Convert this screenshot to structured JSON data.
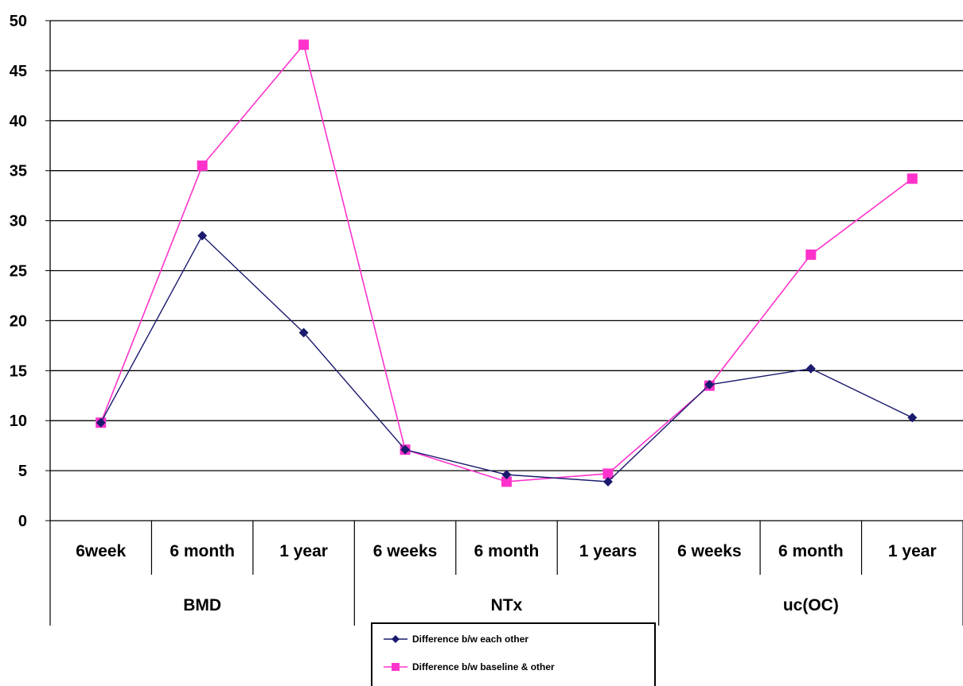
{
  "chart_data": {
    "type": "line",
    "categories": [
      "6week",
      "6 month",
      "1 year",
      "6 weeks",
      "6 month",
      "1 years",
      "6 weeks",
      "6 month",
      "1 year"
    ],
    "groups": [
      {
        "label": "BMD",
        "count": 3
      },
      {
        "label": "NTx",
        "count": 3
      },
      {
        "label": "uc(OC)",
        "count": 3
      }
    ],
    "series": [
      {
        "name": "Difference b/w each other",
        "color": "#1a1a6e",
        "marker": "diamond",
        "values": [
          9.8,
          28.5,
          18.8,
          7.1,
          4.6,
          3.9,
          13.6,
          15.2,
          10.3
        ]
      },
      {
        "name": "Difference b/w baseline & other",
        "color": "#ff33cc",
        "marker": "square",
        "values": [
          9.8,
          35.5,
          47.6,
          7.1,
          3.9,
          4.7,
          13.5,
          26.6,
          34.2
        ]
      }
    ],
    "ylim": [
      0,
      50
    ],
    "yticks": [
      0,
      5,
      10,
      15,
      20,
      25,
      30,
      35,
      40,
      45,
      50
    ],
    "grid": true,
    "legend": "bottom"
  }
}
